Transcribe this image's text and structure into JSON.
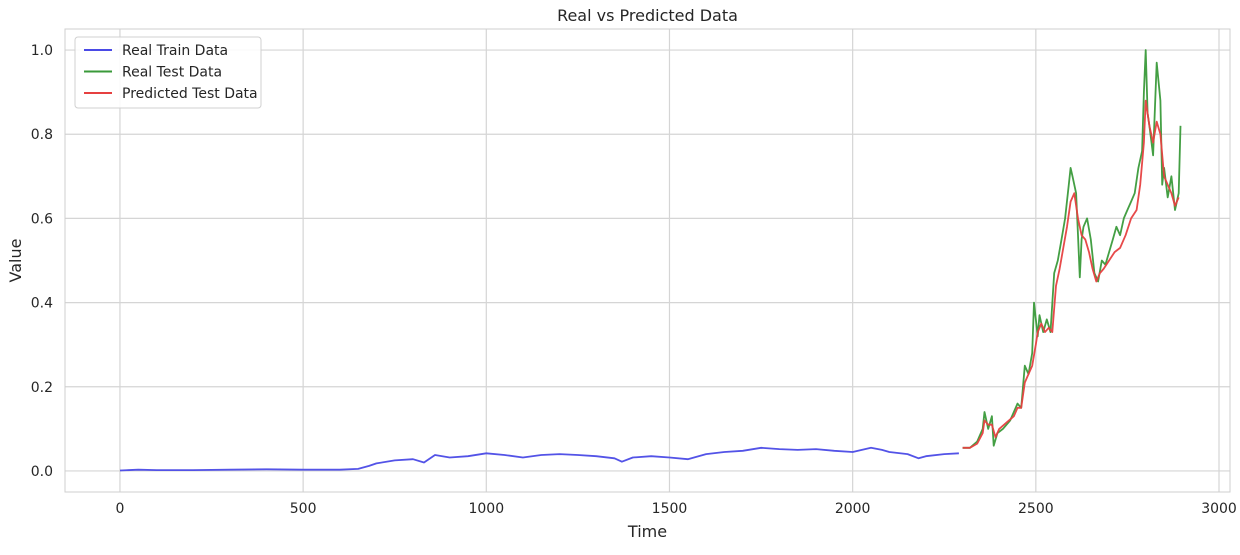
{
  "chart_data": {
    "type": "line",
    "title": "Real vs Predicted Data",
    "xlabel": "Time",
    "ylabel": "Value",
    "xlim": [
      -150,
      3030
    ],
    "ylim": [
      -0.05,
      1.05
    ],
    "xticks": [
      0,
      500,
      1000,
      1500,
      2000,
      2500,
      3000
    ],
    "yticks": [
      0.0,
      0.2,
      0.4,
      0.6,
      0.8,
      1.0
    ],
    "xtick_labels": [
      "0",
      "500",
      "1000",
      "1500",
      "2000",
      "2500",
      "3000"
    ],
    "ytick_labels": [
      "0.0",
      "0.2",
      "0.4",
      "0.6",
      "0.8",
      "1.0"
    ],
    "grid": true,
    "legend_position": "top-left",
    "colors": {
      "Real Train Data": "#4a4ae6",
      "Real Test Data": "#3a9a3a",
      "Predicted Test Data": "#e64040",
      "grid": "#d5d5d5",
      "frame": "#cfcfcf"
    },
    "series": [
      {
        "name": "Real Train Data",
        "x": [
          0,
          50,
          100,
          200,
          300,
          400,
          500,
          600,
          650,
          680,
          700,
          750,
          800,
          830,
          860,
          900,
          950,
          1000,
          1050,
          1100,
          1150,
          1200,
          1250,
          1300,
          1350,
          1370,
          1400,
          1450,
          1500,
          1550,
          1600,
          1650,
          1700,
          1750,
          1800,
          1850,
          1900,
          1950,
          2000,
          2050,
          2080,
          2100,
          2150,
          2180,
          2200,
          2250,
          2290
        ],
        "y": [
          0.001,
          0.003,
          0.002,
          0.002,
          0.003,
          0.004,
          0.003,
          0.003,
          0.005,
          0.012,
          0.018,
          0.025,
          0.028,
          0.02,
          0.038,
          0.032,
          0.035,
          0.042,
          0.038,
          0.032,
          0.038,
          0.04,
          0.038,
          0.035,
          0.03,
          0.022,
          0.032,
          0.035,
          0.032,
          0.028,
          0.04,
          0.045,
          0.048,
          0.055,
          0.052,
          0.05,
          0.052,
          0.048,
          0.045,
          0.055,
          0.05,
          0.045,
          0.04,
          0.03,
          0.035,
          0.04,
          0.042
        ]
      },
      {
        "name": "Real Test Data",
        "x": [
          2300,
          2320,
          2340,
          2355,
          2360,
          2370,
          2380,
          2385,
          2395,
          2410,
          2430,
          2450,
          2460,
          2470,
          2480,
          2490,
          2495,
          2505,
          2510,
          2520,
          2530,
          2540,
          2550,
          2560,
          2570,
          2580,
          2590,
          2595,
          2600,
          2610,
          2615,
          2620,
          2625,
          2630,
          2640,
          2650,
          2660,
          2670,
          2680,
          2690,
          2700,
          2710,
          2720,
          2730,
          2740,
          2750,
          2760,
          2770,
          2780,
          2790,
          2795,
          2800,
          2805,
          2810,
          2820,
          2830,
          2840,
          2845,
          2850,
          2860,
          2870,
          2880,
          2890,
          2895
        ],
        "y": [
          0.055,
          0.055,
          0.07,
          0.1,
          0.14,
          0.1,
          0.13,
          0.06,
          0.09,
          0.1,
          0.12,
          0.16,
          0.15,
          0.25,
          0.23,
          0.28,
          0.4,
          0.32,
          0.37,
          0.33,
          0.36,
          0.33,
          0.47,
          0.5,
          0.55,
          0.6,
          0.68,
          0.72,
          0.7,
          0.66,
          0.56,
          0.46,
          0.55,
          0.58,
          0.6,
          0.55,
          0.47,
          0.45,
          0.5,
          0.49,
          0.52,
          0.55,
          0.58,
          0.56,
          0.6,
          0.62,
          0.64,
          0.66,
          0.72,
          0.76,
          0.9,
          1.0,
          0.85,
          0.82,
          0.75,
          0.97,
          0.88,
          0.68,
          0.72,
          0.65,
          0.7,
          0.62,
          0.66,
          0.82
        ]
      },
      {
        "name": "Predicted Test Data",
        "x": [
          2300,
          2320,
          2340,
          2355,
          2360,
          2370,
          2380,
          2390,
          2400,
          2420,
          2440,
          2450,
          2460,
          2470,
          2480,
          2490,
          2500,
          2505,
          2515,
          2525,
          2535,
          2545,
          2555,
          2565,
          2575,
          2585,
          2595,
          2605,
          2615,
          2625,
          2635,
          2645,
          2655,
          2665,
          2675,
          2685,
          2700,
          2715,
          2730,
          2745,
          2760,
          2775,
          2785,
          2795,
          2800,
          2810,
          2820,
          2830,
          2840,
          2850,
          2860,
          2870,
          2880,
          2890
        ],
        "y": [
          0.055,
          0.055,
          0.065,
          0.09,
          0.12,
          0.11,
          0.11,
          0.08,
          0.1,
          0.115,
          0.13,
          0.15,
          0.15,
          0.21,
          0.23,
          0.25,
          0.3,
          0.33,
          0.35,
          0.33,
          0.34,
          0.33,
          0.44,
          0.48,
          0.53,
          0.58,
          0.64,
          0.66,
          0.6,
          0.56,
          0.55,
          0.52,
          0.48,
          0.45,
          0.47,
          0.48,
          0.5,
          0.52,
          0.53,
          0.56,
          0.6,
          0.62,
          0.68,
          0.78,
          0.88,
          0.82,
          0.78,
          0.83,
          0.8,
          0.7,
          0.68,
          0.66,
          0.63,
          0.65
        ]
      }
    ]
  }
}
